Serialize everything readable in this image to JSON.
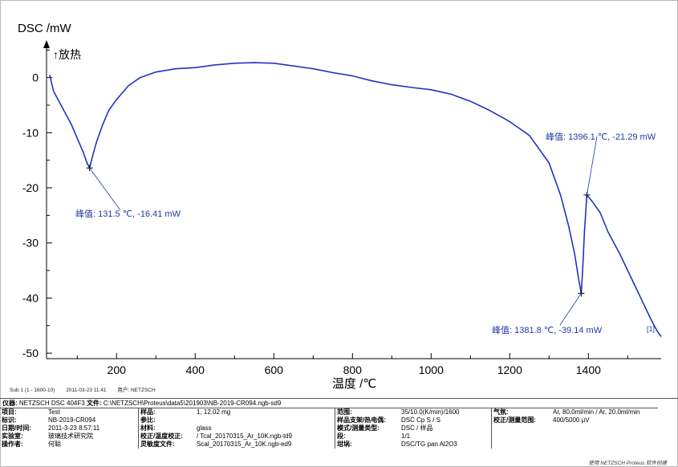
{
  "chart_data": {
    "type": "line",
    "ylabel": "DSC /mW",
    "ylabel_note": "↑放热",
    "xlabel": "温度 /℃",
    "xlim": [
      22,
      1585
    ],
    "ylim": [
      -51,
      6.5
    ],
    "xticks": [
      200,
      400,
      600,
      800,
      1000,
      1200,
      1400
    ],
    "yticks": [
      0,
      -10,
      -20,
      -30,
      -40,
      -50
    ],
    "series_marker": "[1]",
    "color": "#2233c0",
    "series": [
      {
        "x": [
          30,
          40,
          55,
          70,
          85,
          100,
          115,
          125,
          131.5,
          140,
          150,
          165,
          180,
          200,
          230,
          260,
          300,
          350,
          400,
          450,
          500,
          550,
          600,
          650,
          700,
          750,
          800,
          850,
          900,
          950,
          1000,
          1050,
          1100,
          1150,
          1200,
          1250,
          1300,
          1330,
          1350,
          1365,
          1375,
          1381.8,
          1386,
          1390,
          1396.1,
          1410,
          1430,
          1450,
          1480,
          1510,
          1540,
          1560,
          1575,
          1585
        ],
        "y": [
          0.5,
          -2.5,
          -4.5,
          -6.5,
          -8.5,
          -11,
          -13.5,
          -15.5,
          -16.41,
          -14,
          -11.5,
          -8.5,
          -6,
          -4,
          -1.5,
          0,
          1,
          1.6,
          1.8,
          2.3,
          2.6,
          2.7,
          2.6,
          2.1,
          1.6,
          0.9,
          0.3,
          -0.6,
          -1.3,
          -1.8,
          -2.2,
          -3,
          -4.3,
          -6,
          -8,
          -10.5,
          -15.5,
          -21.5,
          -27,
          -32,
          -36.5,
          -39.14,
          -34,
          -28,
          -21.29,
          -22.5,
          -24.5,
          -28,
          -32,
          -36.5,
          -41,
          -44,
          -46,
          -47
        ]
      }
    ],
    "annotations": [
      {
        "text": "峰值: 131.5 ℃, -16.41 mW",
        "x": 131.5,
        "y": -16.41
      },
      {
        "text": "峰值: 1396.1 ℃, -21.29 mW",
        "x": 1396.1,
        "y": -21.29
      },
      {
        "text": "峰值: 1381.8 ℃, -39.14 mW",
        "x": 1381.8,
        "y": -39.14
      }
    ]
  },
  "sub_line": {
    "sub": "Sub 1 (1 - 1600-10)",
    "datetime": "2011-03-23 11:41",
    "user": "用户: NETZSCH"
  },
  "instrument_line": {
    "instrument_label": "仪器:",
    "instrument_value": "NETZSCH DSC 404F3",
    "file_label": "文件:",
    "file_value": "C:\\NETZSCH\\Proteus\\data5\\201903\\NB-2019-CR094.ngb-sd9"
  },
  "info": {
    "project_k": "项目:",
    "project_v": "Test",
    "id_k": "标识:",
    "id_v": "NB-2019-CR094",
    "date_k": "日期/时间:",
    "date_v": "2011-3-23 8:57:11",
    "lab_k": "实验室:",
    "lab_v": "玻璃技术研究院",
    "operator_k": "操作者:",
    "operator_v": "何聪",
    "sample_k": "样品:",
    "sample_v": "1, 12.02 mg",
    "ref_k": "参比:",
    "ref_v": "",
    "material_k": "材料:",
    "material_v": "glass",
    "tcal_k": "校正/温度校正:",
    "tcal_v": "/ Tcal_20170315_Ar_10K.ngb-td9",
    "sens_k": "灵敏度文件:",
    "sens_v": "Scal_20170315_Ar_10K.ngb-ed9",
    "range_k": "范围:",
    "range_v": "35/10.0(K/min)/1600",
    "carrier_k": "样品支架/热电偶:",
    "carrier_v": "DSC Cp S / S",
    "mode_k": "模式/测量类型:",
    "mode_v": "DSC / 样品",
    "seg_k": "段:",
    "seg_v": "1/1",
    "crucible_k": "坩埚:",
    "crucible_v": "DSC/TG pan Al2O3",
    "gas_k": "气氛:",
    "gas_v": "Ar, 80.0ml/min / Ar, 20.0ml/min",
    "corr_k": "校正/测量范围:",
    "corr_v": "400/5000 μV"
  },
  "footer": "使用 NETZSCH Proteus 软件创建"
}
